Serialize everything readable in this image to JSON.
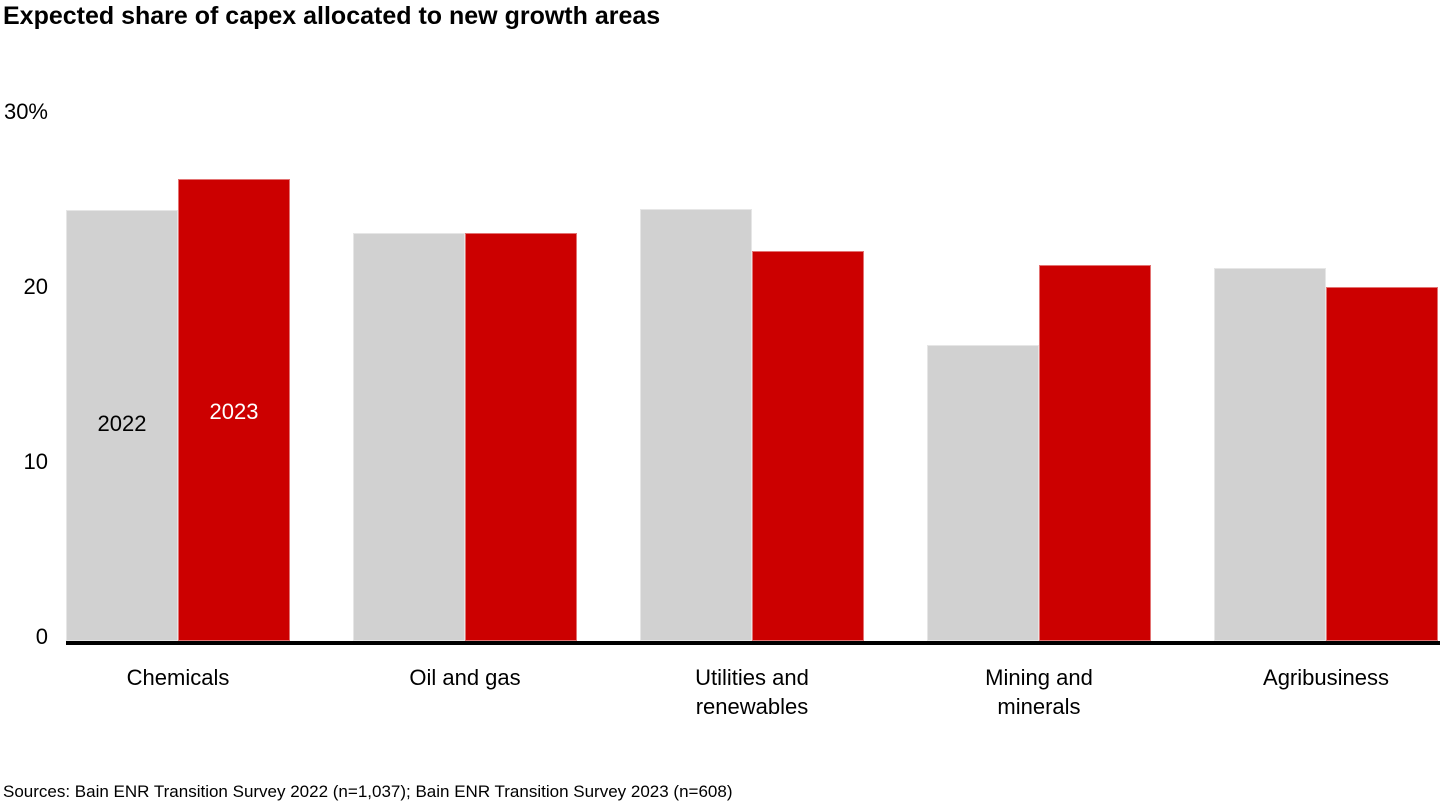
{
  "page": {
    "title": "Expected share of capex allocated to new growth areas",
    "source_note": "Sources: Bain ENR Transition Survey 2022 (n=1,037); Bain ENR Transition Survey 2023 (n=608)"
  },
  "colors": {
    "background": "#ffffff",
    "bar_2022": "#d1d1d1",
    "bar_2023": "#cc0000",
    "axis_line": "#000000",
    "text": "#000000",
    "in_bar_label_2022": "#000000",
    "in_bar_label_2023": "#ffffff"
  },
  "chart_data": {
    "type": "bar",
    "title": "Expected share of capex allocated to new growth areas",
    "categories": [
      "Chemicals",
      "Oil and gas",
      "Utilities and renewables",
      "Mining and minerals",
      "Agribusiness"
    ],
    "series": [
      {
        "name": "2022",
        "color": "#d1d1d1",
        "values": [
          24.6,
          23.3,
          24.7,
          16.9,
          21.3
        ]
      },
      {
        "name": "2023",
        "color": "#cc0000",
        "values": [
          26.4,
          23.3,
          22.3,
          21.5,
          20.2
        ]
      }
    ],
    "unit": "%",
    "xlabel": "",
    "ylabel": "",
    "ylim": [
      0,
      30
    ],
    "y_ticks": [
      {
        "value": 0,
        "label": "0"
      },
      {
        "value": 10,
        "label": "10"
      },
      {
        "value": 20,
        "label": "20"
      },
      {
        "value": 30,
        "label": "30%"
      }
    ],
    "grid": false,
    "legend_position": "labels-inside-first-bar-pair",
    "series_labels_in_bars": [
      {
        "series": "2022",
        "text_color": "#000000"
      },
      {
        "series": "2023",
        "text_color": "#ffffff"
      }
    ]
  }
}
